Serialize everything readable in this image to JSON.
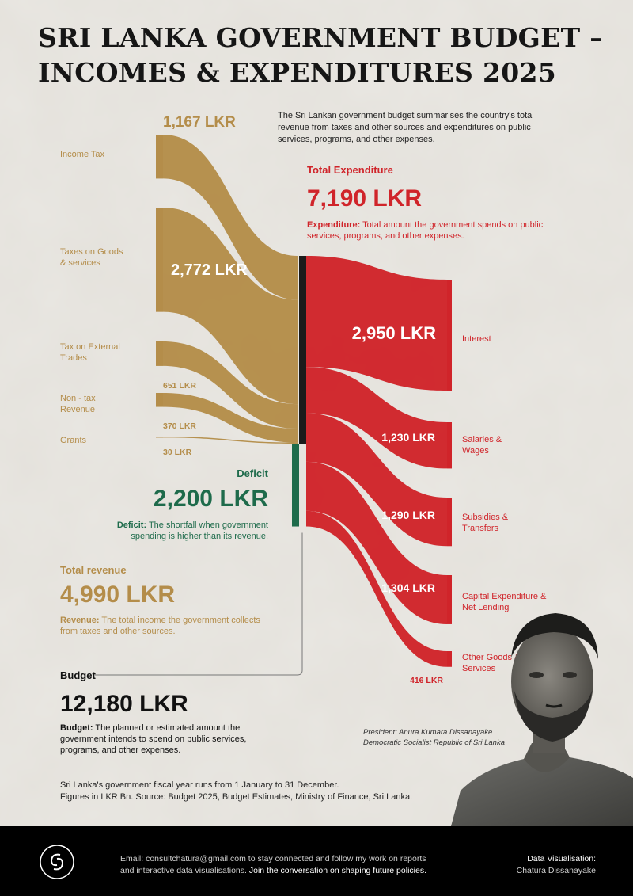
{
  "title": "SRI LANKA GOVERNMENT BUDGET – INCOMES & EXPENDITURES 2025",
  "intro": "The Sri Lankan government budget summarises the country's total revenue from taxes and other sources and expenditures on public services, programs, and other expenses.",
  "colors": {
    "income": "#b48d4a",
    "expenditure": "#d0242a",
    "deficit": "#1e6b4b",
    "node": "#1b1b1b"
  },
  "chart_data": {
    "type": "sankey",
    "units": "LKR Bn",
    "sources": [
      {
        "name": "Income Tax",
        "value": 1167,
        "label": "1,167 LKR"
      },
      {
        "name": "Taxes on Goods & services",
        "value": 2772,
        "label": "2,772 LKR"
      },
      {
        "name": "Tax on External Trades",
        "value": 651,
        "label": "651 LKR"
      },
      {
        "name": "Non - tax Revenue",
        "value": 370,
        "label": "370 LKR"
      },
      {
        "name": "Grants",
        "value": 30,
        "label": "30 LKR"
      }
    ],
    "deficit": {
      "name": "Deficit",
      "value": 2200,
      "label": "2,200 LKR"
    },
    "targets": [
      {
        "name": "Interest",
        "value": 2950,
        "label": "2,950 LKR"
      },
      {
        "name": "Salaries & Wages",
        "value": 1230,
        "label": "1,230 LKR"
      },
      {
        "name": "Subsidies & Transfers",
        "value": 1290,
        "label": "1,290 LKR"
      },
      {
        "name": "Capital Expenditure & Net Lending",
        "value": 1304,
        "label": "1,304 LKR"
      },
      {
        "name": "Other Goods & Services",
        "value": 416,
        "label": "416 LKR"
      }
    ]
  },
  "source_labels": {
    "income_tax": "Income Tax",
    "goods": [
      "Taxes on Goods",
      "& services"
    ],
    "external": [
      "Tax on External",
      "Trades"
    ],
    "nontax": [
      "Non - tax",
      "Revenue"
    ],
    "grants": "Grants"
  },
  "target_labels": {
    "interest": "Interest",
    "salaries": [
      "Salaries &",
      "Wages"
    ],
    "subsidies": [
      "Subsidies &",
      "Transfers"
    ],
    "capital": [
      "Capital Expenditure &",
      "Net Lending"
    ],
    "other": [
      "Other Goods &",
      "Services"
    ]
  },
  "total_expenditure": {
    "heading": "Total Expenditure",
    "value": "7,190 LKR",
    "note_bold": "Expenditure:",
    "note": " Total amount the government spends on public services, programs, and other expenses."
  },
  "deficit_block": {
    "heading": "Deficit",
    "value": "2,200 LKR",
    "note_bold": "Deficit:",
    "note": " The shortfall when government spending is higher than its revenue."
  },
  "total_revenue": {
    "heading": "Total revenue",
    "value": "4,990 LKR",
    "note_bold": "Revenue:",
    "note": " The total income the government collects from taxes and other sources."
  },
  "budget": {
    "heading": "Budget",
    "value": "12,180 LKR",
    "note_bold": "Budget:",
    "note": " The planned or estimated amount the government intends to spend on public services, programs, and other expenses."
  },
  "photo_caption": [
    "President: Anura Kumara Dissanayake",
    "Democratic Socialist Republic of Sri Lanka"
  ],
  "source_note": [
    "Sri Lanka's government fiscal year runs from 1 January to 31 December.",
    "Figures in LKR Bn. Source: Budget 2025, Budget Estimates, Ministry of Finance, Sri Lanka."
  ],
  "footer": {
    "email_line1": "Email: consultchatura@gmail.com to stay connected and follow my work on reports",
    "email_line2a": "and interactive data visualisations.",
    "email_line2b": " Join the conversation on shaping future policies.",
    "credit_title": "Data Visualisation:",
    "credit_name": "Chatura Dissanayake",
    "logo_icon": "cd-monogram-icon"
  }
}
